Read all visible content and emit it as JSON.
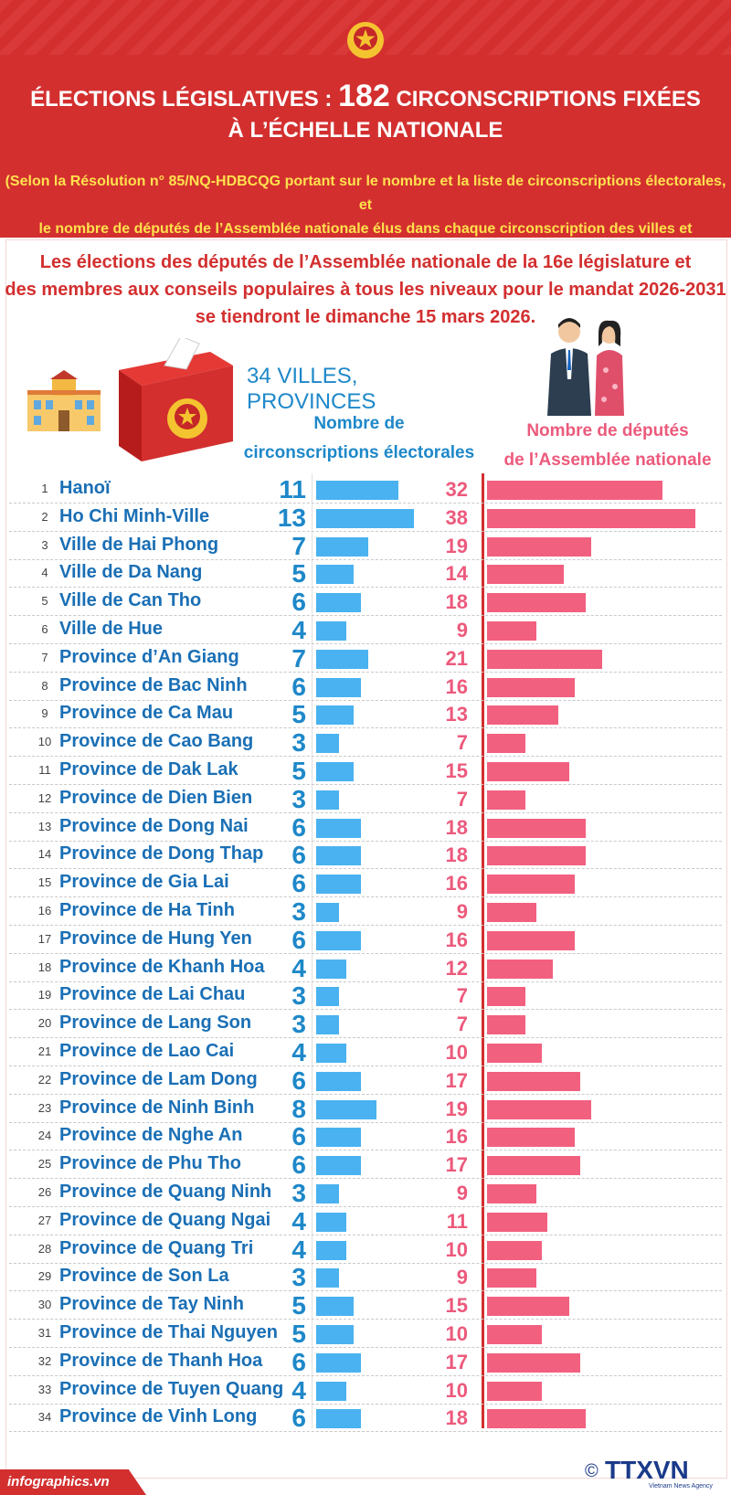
{
  "header": {
    "title_prefix": "ÉLECTIONS LÉGISLATIVES :",
    "title_number": "182",
    "title_suffix": "CIRCONSCRIPTIONS FIXÉES",
    "title_line2": "À L’ÉCHELLE NATIONALE",
    "subtitle_line1": "(Selon la Résolution n° 85/NQ-HDBCQG portant sur le nombre et la liste de circonscriptions électorales, et",
    "subtitle_line2": "le nombre de députés de l’Assemblée nationale élus dans chaque circonscription des villes et provinces)"
  },
  "intro": {
    "line1": "Les élections des députés de l’Assemblée nationale de la 16e législature et",
    "line2": "des membres aux conseils populaires à tous les niveaux pour le mandat 2026-2031",
    "line3": "se tiendront le dimanche 15 mars 2026."
  },
  "labels": {
    "count": "34 VILLES, PROVINCES",
    "circ_line1": "Nombre de",
    "circ_line2": "circonscriptions électorales",
    "dep_line1": "Nombre de députés",
    "dep_line2": "de l’Assemblée nationale"
  },
  "colors": {
    "red": "#d32f2f",
    "blue": "#1e88c9",
    "bar_blue": "#4ab2f0",
    "pink": "#ec5a7c",
    "bar_pink": "#f2607f",
    "yellow": "#ffe14d"
  },
  "chart_data": {
    "type": "bar",
    "title": "ÉLECTIONS LÉGISLATIVES : 182 CIRCONSCRIPTIONS FIXÉES À L’ÉCHELLE NATIONALE",
    "categories": [
      "Hanoï",
      "Ho Chi Minh-Ville",
      "Ville de Hai Phong",
      "Ville de Da Nang",
      "Ville de Can Tho",
      "Ville de Hue",
      "Province d’An Giang",
      "Province de Bac Ninh",
      "Province de Ca Mau",
      "Province de Cao Bang",
      "Province de Dak Lak",
      "Province de Dien Bien",
      "Province de Dong Nai",
      "Province de Dong Thap",
      "Province de Gia Lai",
      "Province de Ha Tinh",
      "Province de Hung Yen",
      "Province de Khanh Hoa",
      "Province de Lai Chau",
      "Province de Lang Son",
      "Province de Lao Cai",
      "Province de Lam Dong",
      "Province de Ninh Binh",
      "Province de Nghe An",
      "Province de Phu Tho",
      "Province de Quang Ninh",
      "Province de Quang Ngai",
      "Province de Quang Tri",
      "Province de Son La",
      "Province de Tay Ninh",
      "Province de Thai Nguyen",
      "Province de Thanh Hoa",
      "Province de Tuyen Quang",
      "Province de Vinh Long"
    ],
    "series": [
      {
        "name": "Nombre de circonscriptions électorales",
        "values": [
          11,
          13,
          7,
          5,
          6,
          4,
          7,
          6,
          5,
          3,
          5,
          3,
          6,
          6,
          6,
          3,
          6,
          4,
          3,
          3,
          4,
          6,
          8,
          6,
          6,
          3,
          4,
          4,
          3,
          5,
          5,
          6,
          4,
          6
        ]
      },
      {
        "name": "Nombre de députés de l’Assemblée nationale",
        "values": [
          32,
          38,
          19,
          14,
          18,
          9,
          21,
          16,
          13,
          7,
          15,
          7,
          18,
          18,
          16,
          9,
          16,
          12,
          7,
          7,
          10,
          17,
          19,
          16,
          17,
          9,
          11,
          10,
          9,
          15,
          10,
          17,
          10,
          18
        ]
      }
    ]
  },
  "footer": {
    "site": "infographics.vn",
    "copyright": "©",
    "brand": "TTXVN",
    "brand_sub": "Vietnam News Agency"
  }
}
